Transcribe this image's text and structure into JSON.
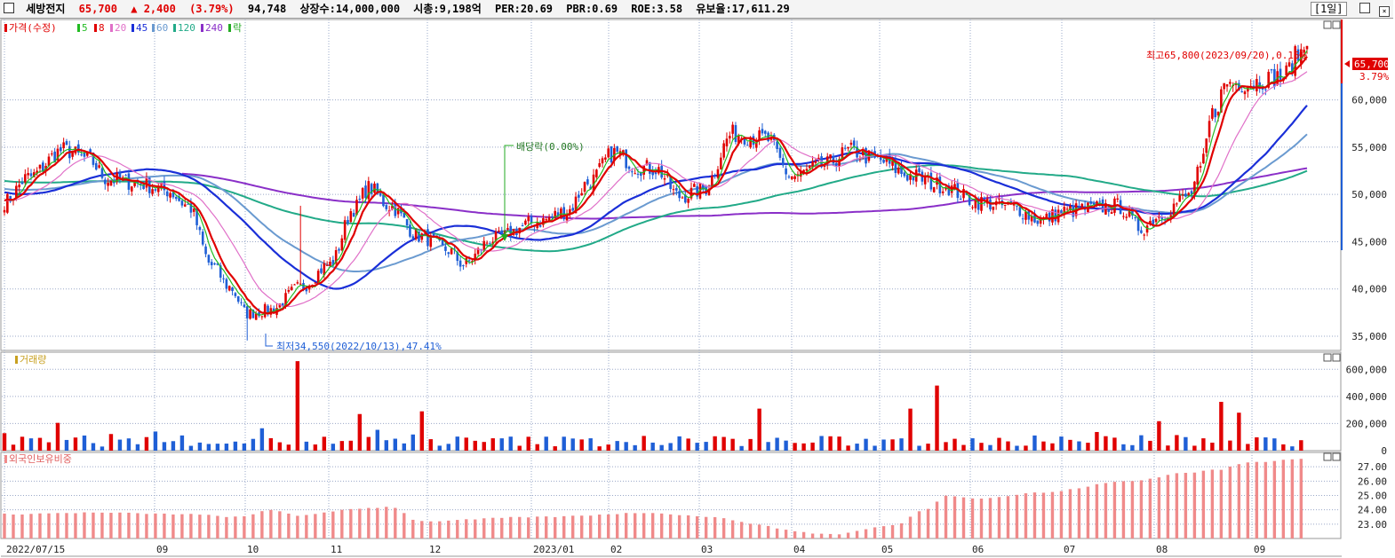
{
  "header": {
    "stock_name": "세방전지",
    "price": "65,700",
    "change_arrow": "▲",
    "change": "2,400",
    "change_pct": "(3.79%)",
    "volume": "94,748",
    "listed_shares": "상장수:14,000,000",
    "market_cap": "시총:9,198억",
    "per": "PER:20.69",
    "pbr": "PBR:0.69",
    "roe": "ROE:3.58",
    "float": "유보율:17,611.29",
    "period_button": "[1일]"
  },
  "colors": {
    "up": "#e00000",
    "down": "#1f5fd6",
    "ma5": "#22bb22",
    "ma8": "#e00000",
    "ma20": "#e070c8",
    "ma45": "#1a2fd8",
    "ma60": "#6a9ad0",
    "ma120": "#22aa88",
    "ma240": "#8a2fc8",
    "foreign": "#f08a8a",
    "grid": "#9aa8c8"
  },
  "price_legend": [
    {
      "label": "가격(수정)",
      "color": "#e00000"
    },
    {
      "label": "5",
      "color": "#22bb22"
    },
    {
      "label": "8",
      "color": "#e00000"
    },
    {
      "label": "20",
      "color": "#e070c8"
    },
    {
      "label": "45",
      "color": "#1a2fd8"
    },
    {
      "label": "60",
      "color": "#6a9ad0"
    },
    {
      "label": "120",
      "color": "#22aa88"
    },
    {
      "label": "240",
      "color": "#8a2fc8"
    },
    {
      "label": "락",
      "color": "#22aa22"
    }
  ],
  "annotations": {
    "high": "최고65,800(2023/09/20),0.15%",
    "low": "최저34,550(2022/10/13),47.41%",
    "dividend": "배당락(0.00%)",
    "price_tag": "65,700",
    "price_tag_pct": "3.79%"
  },
  "volume_legend": "거래량",
  "foreign_legend": "외국인보유비중",
  "chart_data": [
    {
      "type": "candlestick",
      "title": "가격(수정)",
      "ylim": [
        33500,
        68500
      ],
      "y_ticks": [
        35000,
        40000,
        45000,
        50000,
        55000,
        60000
      ],
      "y_tick_labels": [
        "35,000",
        "40,000",
        "45,000",
        "50,000",
        "55,000",
        "60,000"
      ],
      "x_tick_labels": [
        "2022/07/15",
        "09",
        "10",
        "11",
        "12",
        "2023/01",
        "02",
        "03",
        "04",
        "05",
        "06",
        "07",
        "08",
        "09"
      ],
      "anchors": [
        [
          0,
          49200
        ],
        [
          8,
          51800
        ],
        [
          20,
          54700
        ],
        [
          28,
          53800
        ],
        [
          35,
          51600
        ],
        [
          45,
          51200
        ],
        [
          55,
          50400
        ],
        [
          62,
          48800
        ],
        [
          70,
          42500
        ],
        [
          76,
          40200
        ],
        [
          82,
          37400
        ],
        [
          90,
          37800
        ],
        [
          100,
          40200
        ],
        [
          110,
          42600
        ],
        [
          118,
          48500
        ],
        [
          123,
          50700
        ],
        [
          130,
          48800
        ],
        [
          140,
          45600
        ],
        [
          150,
          44100
        ],
        [
          155,
          42600
        ],
        [
          165,
          45300
        ],
        [
          180,
          47100
        ],
        [
          190,
          48200
        ],
        [
          197,
          51200
        ],
        [
          206,
          54400
        ],
        [
          214,
          52900
        ],
        [
          220,
          52700
        ],
        [
          228,
          49800
        ],
        [
          236,
          50500
        ],
        [
          246,
          56400
        ],
        [
          257,
          55900
        ],
        [
          266,
          51900
        ],
        [
          276,
          53000
        ],
        [
          286,
          54600
        ],
        [
          295,
          53600
        ],
        [
          306,
          52000
        ],
        [
          316,
          51000
        ],
        [
          329,
          49200
        ],
        [
          340,
          48700
        ],
        [
          350,
          47300
        ],
        [
          358,
          48200
        ],
        [
          366,
          48500
        ],
        [
          376,
          48800
        ],
        [
          384,
          46400
        ],
        [
          390,
          47800
        ],
        [
          400,
          49800
        ],
        [
          404,
          52500
        ],
        [
          408,
          58500
        ],
        [
          413,
          61800
        ],
        [
          420,
          61800
        ],
        [
          432,
          62500
        ],
        [
          437,
          64800
        ],
        [
          440,
          65700
        ]
      ],
      "ma_periods": [
        5,
        8,
        20,
        45,
        60,
        120,
        240
      ],
      "high_point": {
        "date": "2023/09/20",
        "value": 65800
      },
      "low_point": {
        "date": "2022/10/13",
        "value": 34550
      },
      "last_close": 65700
    },
    {
      "type": "bar",
      "title": "거래량",
      "ylim": [
        0,
        700000
      ],
      "y_ticks": [
        200000,
        400000,
        600000
      ],
      "y_tick_labels": [
        "200,000",
        "400,000",
        "600,000"
      ],
      "spikes": [
        [
          100,
          660000
        ],
        [
          121,
          270000
        ],
        [
          140,
          290000
        ],
        [
          255,
          310000
        ],
        [
          306,
          310000
        ],
        [
          316,
          480000
        ],
        [
          412,
          360000
        ],
        [
          417,
          280000
        ]
      ]
    },
    {
      "type": "bar",
      "title": "외국인보유비중",
      "ylim": [
        22,
        28
      ],
      "y_ticks": [
        23,
        24,
        25,
        26,
        27
      ],
      "y_tick_labels": [
        "23.00",
        "24.00",
        "25.00",
        "26.00",
        "27.00"
      ],
      "anchors": [
        [
          0,
          23.7
        ],
        [
          30,
          23.8
        ],
        [
          60,
          23.7
        ],
        [
          80,
          23.5
        ],
        [
          90,
          24.0
        ],
        [
          100,
          23.6
        ],
        [
          120,
          24.1
        ],
        [
          131,
          24.2
        ],
        [
          140,
          23.2
        ],
        [
          180,
          23.5
        ],
        [
          220,
          23.8
        ],
        [
          230,
          23.6
        ],
        [
          280,
          22.3
        ],
        [
          300,
          22.9
        ],
        [
          312,
          24.1
        ],
        [
          318,
          25.0
        ],
        [
          330,
          24.8
        ],
        [
          350,
          25.2
        ],
        [
          380,
          26.0
        ],
        [
          400,
          26.6
        ],
        [
          410,
          26.8
        ],
        [
          420,
          27.3
        ],
        [
          440,
          27.6
        ]
      ]
    }
  ]
}
